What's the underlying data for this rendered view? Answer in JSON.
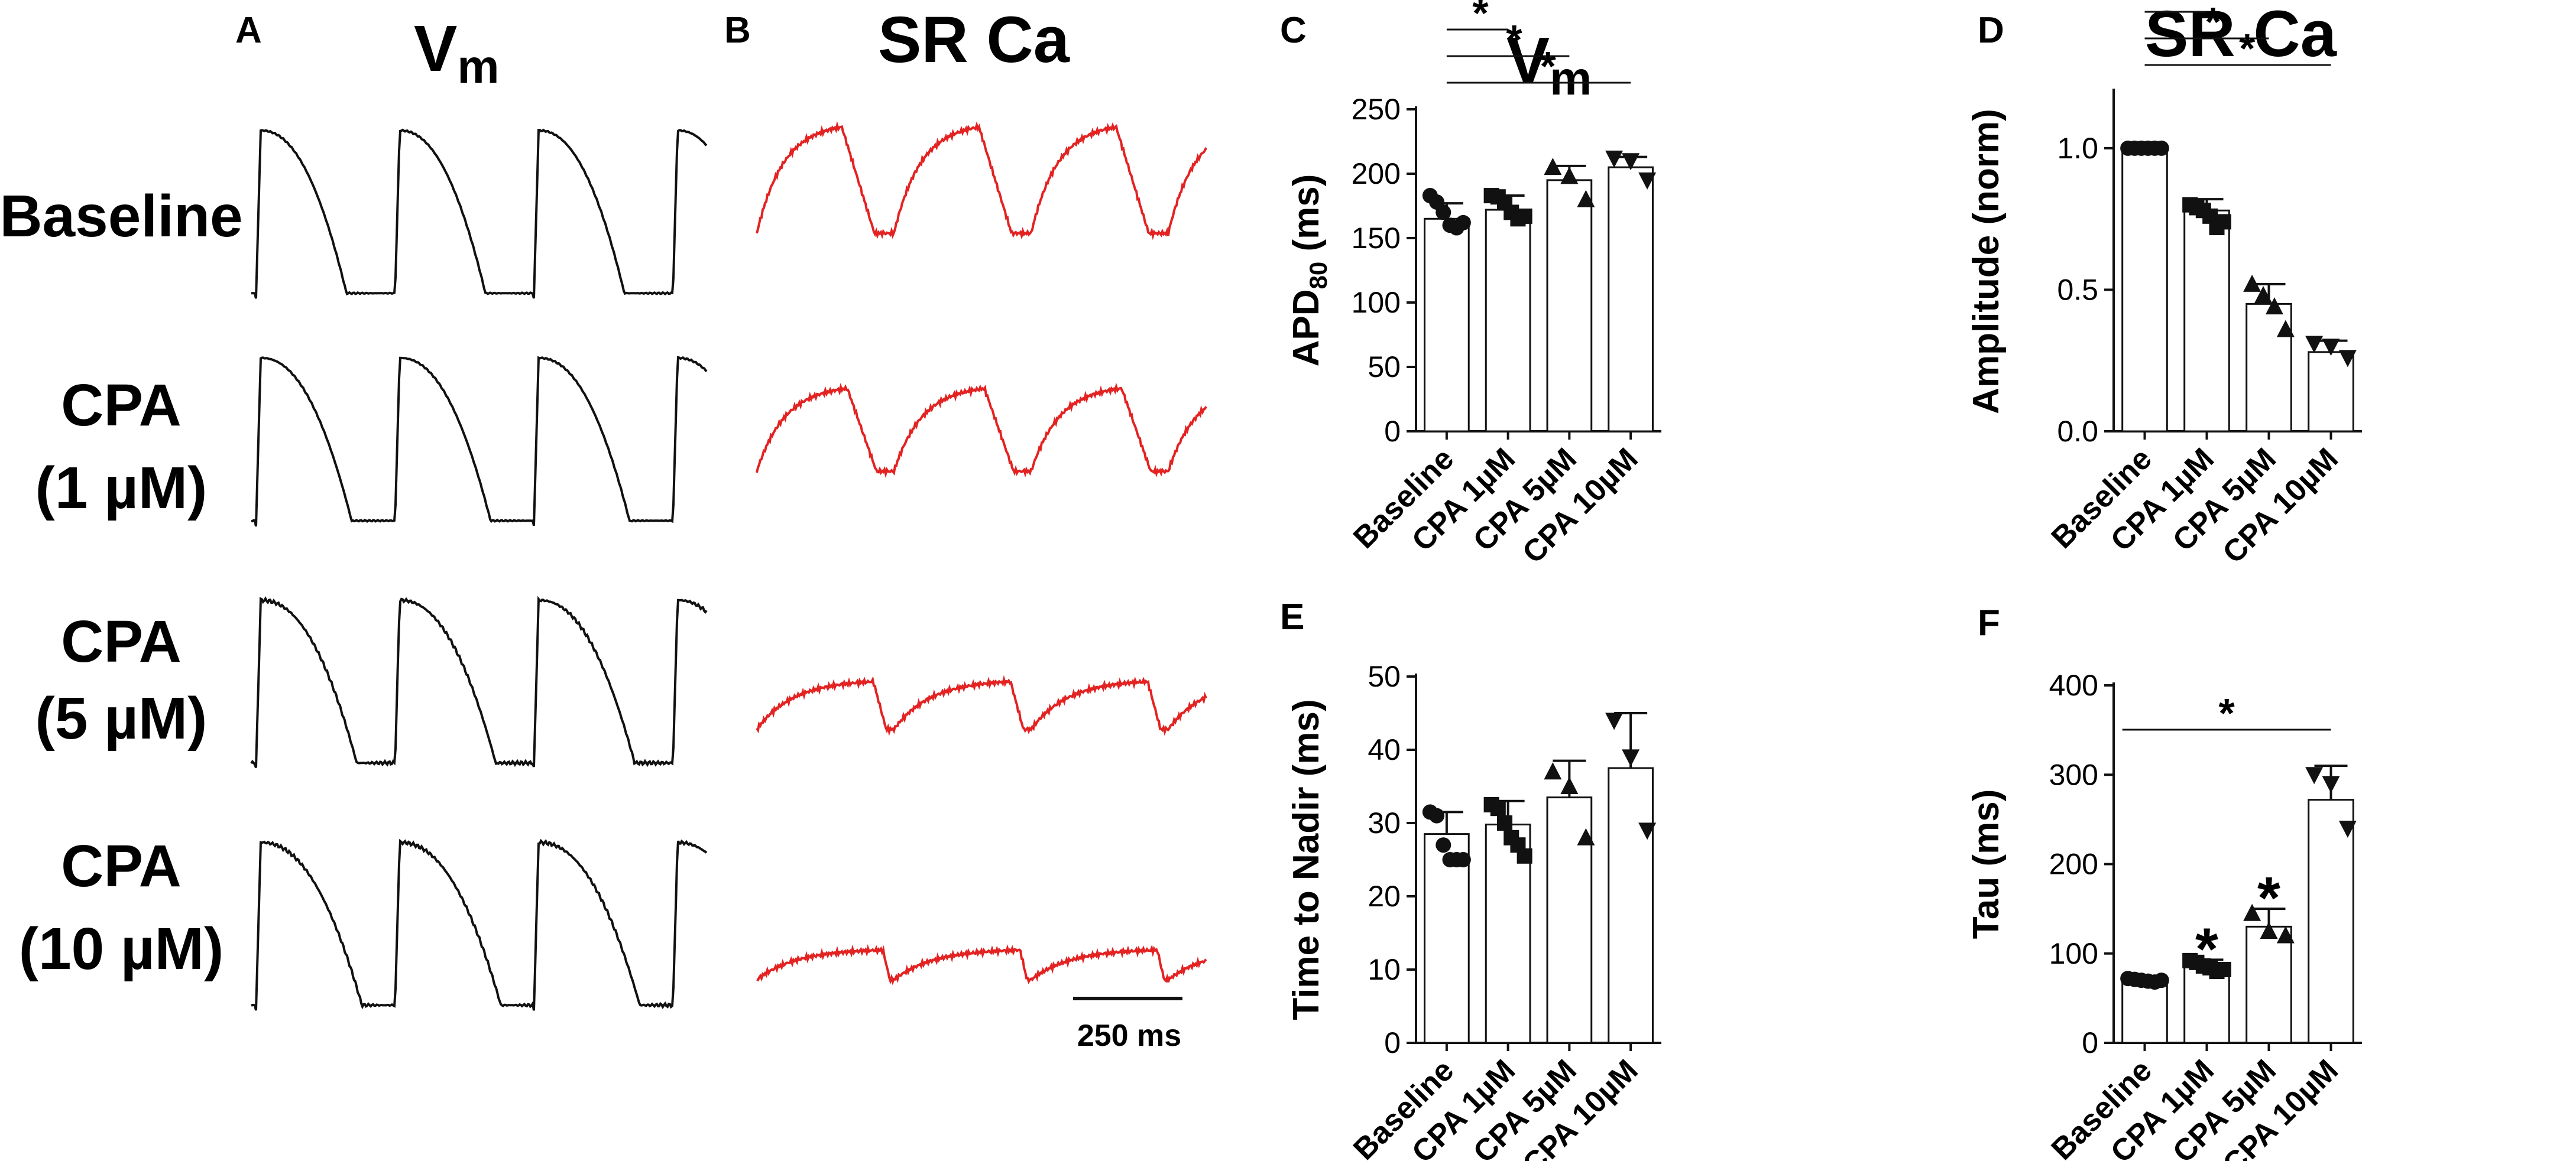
{
  "panels": {
    "A": {
      "letter": "A",
      "title": "V",
      "title_sub": "m"
    },
    "B": {
      "letter": "B",
      "title": "SR Ca"
    }
  },
  "row_labels": [
    {
      "line1": "Baseline",
      "line2": ""
    },
    {
      "line1": "CPA",
      "line2": "(1 µM)"
    },
    {
      "line1": "CPA",
      "line2": "(5 µM)"
    },
    {
      "line1": "CPA",
      "line2": "(10 µM)"
    }
  ],
  "scale_bar": {
    "label": "250 ms",
    "duration_ms": 250
  },
  "colors": {
    "vm_trace": "#111111",
    "ca_trace": "#e32222",
    "axis": "#111111"
  },
  "trace_params": [
    {
      "ca_amp": 1.0,
      "ca_recovery_ms": 60,
      "ca_rise_frac": 0.62
    },
    {
      "ca_amp": 0.78,
      "ca_recovery_ms": 75,
      "ca_rise_frac": 0.66
    },
    {
      "ca_amp": 0.45,
      "ca_recovery_ms": 120,
      "ca_rise_frac": 0.85
    },
    {
      "ca_amp": 0.28,
      "ca_recovery_ms": 220,
      "ca_rise_frac": 0.92
    }
  ],
  "chart_data": [
    {
      "id": "C",
      "letter": "C",
      "type": "bar",
      "title": "V",
      "title_sub": "m",
      "ylabel": "APD",
      "ylabel_sub": "80",
      "ylabel_unit": " (ms)",
      "categories": [
        "Baseline",
        "CPA 1µM",
        "CPA 5µM",
        "CPA 10µM"
      ],
      "values": [
        165,
        172,
        195,
        205
      ],
      "errors": [
        12,
        11,
        11,
        8
      ],
      "markers": [
        "circle",
        "square",
        "triangle",
        "triangle-down"
      ],
      "points": [
        [
          183,
          178,
          170,
          160,
          158,
          162
        ],
        [
          183,
          182,
          178,
          170,
          165,
          167
        ],
        [
          205,
          198,
          180
        ],
        [
          212,
          210,
          195
        ]
      ],
      "ylim": [
        0,
        250
      ],
      "yticks": [
        0,
        50,
        100,
        150,
        200,
        250
      ],
      "significance": [
        {
          "from": 0,
          "to": 1,
          "label": "*"
        },
        {
          "from": 0,
          "to": 2,
          "label": "*"
        },
        {
          "from": 0,
          "to": 3,
          "label": "*"
        }
      ],
      "bar_stars": []
    },
    {
      "id": "D",
      "letter": "D",
      "type": "bar",
      "title": "SR Ca",
      "title_sub": "",
      "ylabel": "Amplitude (norm)",
      "ylabel_sub": "",
      "ylabel_unit": "",
      "categories": [
        "Baseline",
        "CPA 1µM",
        "CPA 5µM",
        "CPA 10µM"
      ],
      "values": [
        1.0,
        0.78,
        0.45,
        0.28
      ],
      "errors": [
        0.0,
        0.04,
        0.07,
        0.04
      ],
      "markers": [
        "circle",
        "square",
        "triangle",
        "triangle-down"
      ],
      "points": [
        [
          1.0,
          1.0,
          1.0,
          1.0,
          1.0,
          1.0
        ],
        [
          0.8,
          0.79,
          0.78,
          0.76,
          0.72,
          0.74
        ],
        [
          0.52,
          0.48,
          0.44,
          0.36
        ],
        [
          0.31,
          0.3,
          0.26
        ]
      ],
      "ylim": [
        0,
        1.2
      ],
      "yticks": [
        0.0,
        0.5,
        1.0
      ],
      "significance": [
        {
          "from": 0,
          "to": 1,
          "label": "*"
        },
        {
          "from": 0,
          "to": 2,
          "label": "*"
        },
        {
          "from": 0,
          "to": 3,
          "label": "*"
        }
      ],
      "bar_stars": []
    },
    {
      "id": "E",
      "letter": "E",
      "type": "bar",
      "title": "",
      "title_sub": "",
      "ylabel": "Time to Nadir (ms)",
      "ylabel_sub": "",
      "ylabel_unit": "",
      "categories": [
        "Baseline",
        "CPA 1µM",
        "CPA 5µM",
        "CPA 10µM"
      ],
      "values": [
        28.5,
        29.8,
        33.5,
        37.5
      ],
      "errors": [
        3.0,
        3.2,
        5.0,
        7.5
      ],
      "markers": [
        "circle",
        "square",
        "triangle",
        "triangle-down"
      ],
      "points": [
        [
          31.5,
          31,
          27,
          25,
          25,
          25
        ],
        [
          32.5,
          32,
          30,
          28,
          27,
          25.5
        ],
        [
          37,
          35,
          28
        ],
        [
          44,
          39,
          29
        ]
      ],
      "ylim": [
        0,
        50
      ],
      "yticks": [
        0,
        10,
        20,
        30,
        40,
        50
      ],
      "significance": [],
      "bar_stars": []
    },
    {
      "id": "F",
      "letter": "F",
      "type": "bar",
      "title": "",
      "title_sub": "",
      "ylabel": "Tau (ms)",
      "ylabel_sub": "",
      "ylabel_unit": "",
      "categories": [
        "Baseline",
        "CPA 1µM",
        "CPA 5µM",
        "CPA 10µM"
      ],
      "values": [
        70,
        85,
        130,
        272
      ],
      "errors": [
        4,
        8,
        20,
        38
      ],
      "markers": [
        "circle",
        "square",
        "triangle",
        "triangle-down"
      ],
      "points": [
        [
          72,
          71,
          70,
          69,
          68,
          70
        ],
        [
          92,
          90,
          86,
          84,
          80,
          82
        ],
        [
          145,
          125,
          120
        ],
        [
          300,
          290,
          240
        ]
      ],
      "ylim": [
        0,
        400
      ],
      "yticks": [
        0,
        100,
        200,
        300,
        400
      ],
      "significance": [
        {
          "from": 0,
          "to": 3,
          "label": "*"
        }
      ],
      "bar_stars": [
        1,
        2
      ]
    }
  ]
}
